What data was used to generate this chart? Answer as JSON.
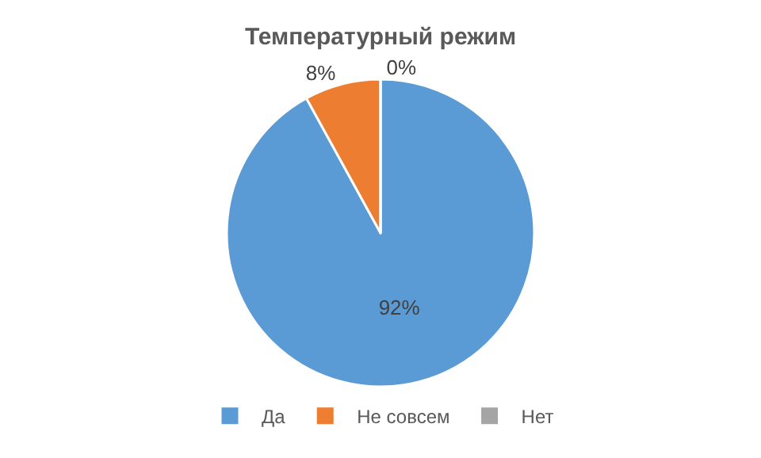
{
  "chart_data": {
    "type": "pie",
    "title": "Температурный режим",
    "categories": [
      "Да",
      "Не совсем",
      "Нет"
    ],
    "values": [
      92,
      8,
      0
    ],
    "colors": [
      "#5b9bd5",
      "#ed7d31",
      "#a5a5a5"
    ],
    "value_labels": [
      "92%",
      "8%",
      "0%"
    ],
    "legend": "bottom"
  }
}
